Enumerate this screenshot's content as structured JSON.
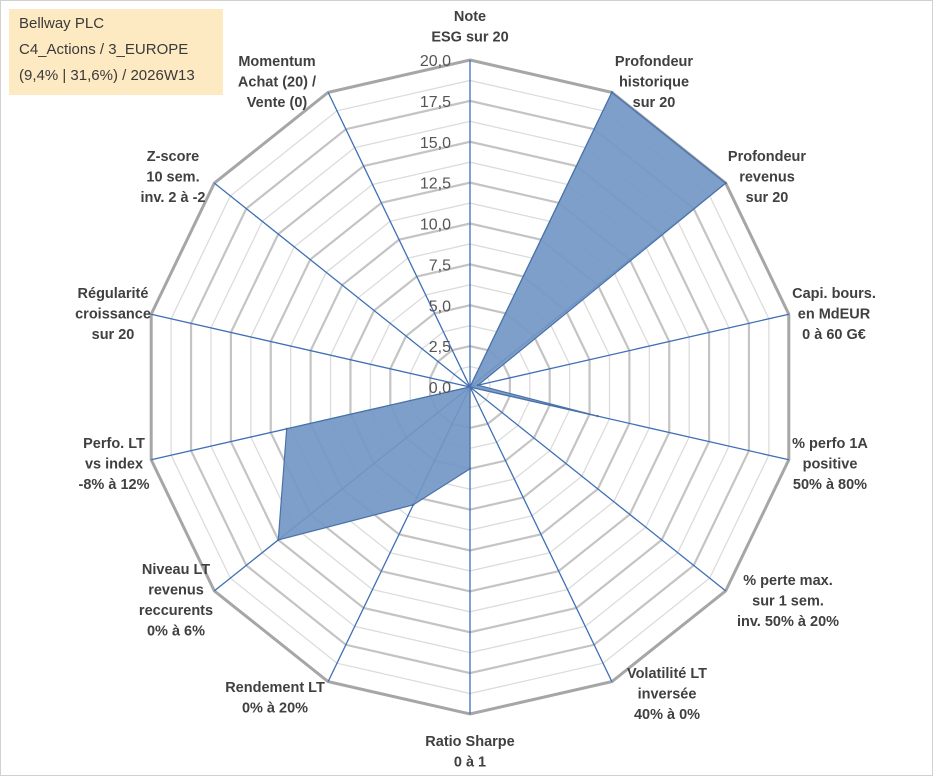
{
  "title_box": {
    "line1": "Bellway PLC",
    "line2": "C4_Actions / 3_EUROPE",
    "line3": "(9,4% | 31,6%) / 2026W13"
  },
  "chart_data": {
    "type": "radar",
    "categories": [
      "Note\nESG sur 20",
      "Profondeur\nhistorique\nsur 20",
      "Profondeur\nrevenus\nsur 20",
      "Capi. bours.\nen MdEUR\n0 à 60 G€",
      "% perfo 1A\npositive\n50% à 80%",
      "% perte max.\nsur 1 sem.\ninv. 50% à 20%",
      "Volatilité LT\ninversée\n40% à 0%",
      "Ratio Sharpe\n0 à 1",
      "Rendement LT\n0% à 20%",
      "Niveau LT\nrevenus\nreccurents\n0% à 6%",
      "Perfo. LT\nvs index\n-8% à 12%",
      "Régularité\ncroissance\nsur 20",
      "Z-score\n10 sem.\ninv. 2 à -2",
      "Momentum\nAchat (20) /\nVente (0)"
    ],
    "series": [
      {
        "values": [
          0,
          20,
          20,
          0.5,
          8,
          0,
          0,
          5,
          8,
          15,
          11.5,
          0,
          0,
          0
        ]
      }
    ],
    "rlim": [
      0,
      20
    ],
    "tick_labels": [
      "0,0",
      "2,5",
      "5,0",
      "7,5",
      "10,0",
      "12,5",
      "15,0",
      "17,5",
      "20,0"
    ],
    "grid": true,
    "colors": {
      "fill": "#7297c5",
      "line": "#4a72a8",
      "axis": "#3f6fb5",
      "ring": "#bfbfbf",
      "outer_ring": "#a6a6a6"
    }
  }
}
